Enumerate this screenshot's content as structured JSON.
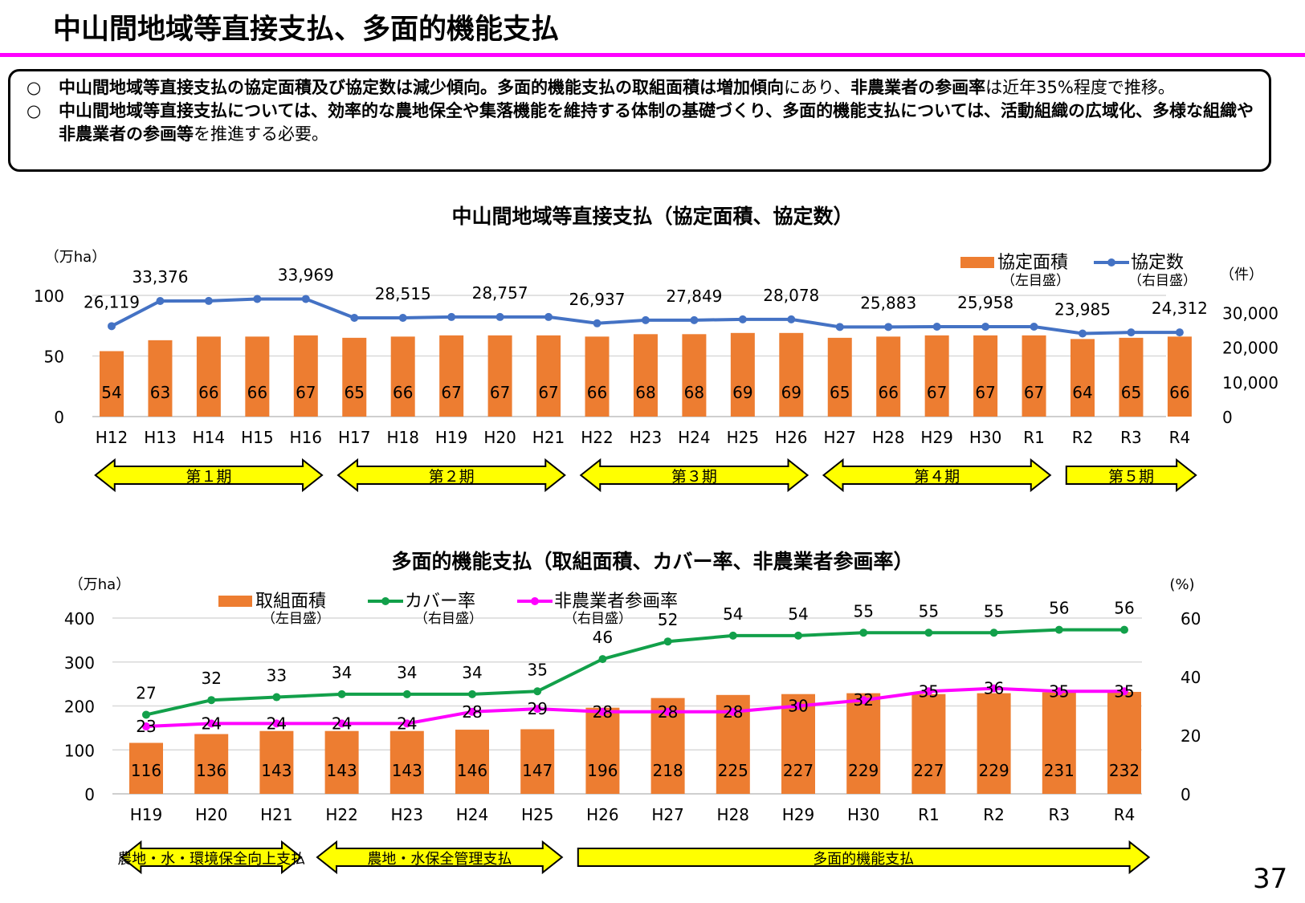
{
  "page": {
    "title": "中山間地域等直接支払、多面的機能支払",
    "page_number": "37"
  },
  "summary": {
    "bullet": "○",
    "line1": {
      "b1": "中山間地域等直接支払の協定面積及び協定数は減少傾向。多面的機能支払の取組面積は増加傾向",
      "n1": "にあり、",
      "b2": "非農業者の参画率",
      "n2": "は近年35%程度で推移。"
    },
    "line2": {
      "b1": "中山間地域等直接支払については、効率的な農地保全や集落機能を維持する体制の基礎づくり、多面的機能支払については、活動組織の広域化、多様な組織や非農業者の参画等",
      "n1": "を推進する必要。"
    }
  },
  "chart_data": [
    {
      "type": "bar",
      "title": "中山間地域等直接支払（協定面積、協定数）",
      "categories": [
        "H12",
        "H13",
        "H14",
        "H15",
        "H16",
        "H17",
        "H18",
        "H19",
        "H20",
        "H21",
        "H22",
        "H23",
        "H24",
        "H25",
        "H26",
        "H27",
        "H28",
        "H29",
        "H30",
        "R1",
        "R2",
        "R3",
        "R4"
      ],
      "series": [
        {
          "name": "協定面積",
          "sub": "（左目盛）",
          "type": "bar",
          "axis": "left",
          "color": "#ed7d31",
          "values": [
            54,
            63,
            66,
            66,
            67,
            65,
            66,
            67,
            67,
            67,
            66,
            68,
            68,
            69,
            69,
            65,
            66,
            67,
            67,
            67,
            64,
            65,
            66
          ]
        },
        {
          "name": "協定数",
          "sub": "（右目盛）",
          "type": "line",
          "axis": "right",
          "color": "#4472c4",
          "values": [
            26119,
            33376,
            33400,
            33969,
            33969,
            28515,
            28515,
            28757,
            28757,
            28757,
            26937,
            27849,
            27849,
            28078,
            28078,
            25883,
            25883,
            25958,
            25958,
            25958,
            23985,
            24312,
            24312
          ],
          "labels": {
            "0": "26,119",
            "1": "33,376",
            "4": "33,969",
            "6": "28,515",
            "8": "28,757",
            "10": "26,937",
            "12": "27,849",
            "14": "28,078",
            "16": "25,883",
            "18": "25,958",
            "20": "23,985",
            "22": "24,312"
          }
        }
      ],
      "y_left": {
        "label": "（万ha）",
        "range": [
          0,
          100
        ],
        "ticks": [
          "0",
          "50",
          "100"
        ]
      },
      "y_right": {
        "label": "（件）",
        "range": [
          0,
          35000
        ],
        "ticks": [
          "0",
          "10,000",
          "20,000",
          "30,000"
        ]
      },
      "periods": [
        {
          "label": "第１期",
          "from": 0,
          "to": 4,
          "style": "double"
        },
        {
          "label": "第２期",
          "from": 5,
          "to": 9,
          "style": "double"
        },
        {
          "label": "第３期",
          "from": 10,
          "to": 14,
          "style": "double"
        },
        {
          "label": "第４期",
          "from": 15,
          "to": 19,
          "style": "double"
        },
        {
          "label": "第５期",
          "from": 20,
          "to": 22,
          "style": "right"
        }
      ],
      "legend": "top-right"
    },
    {
      "type": "bar",
      "title": "多面的機能支払（取組面積、カバー率、非農業者参画率）",
      "categories": [
        "H19",
        "H20",
        "H21",
        "H22",
        "H23",
        "H24",
        "H25",
        "H26",
        "H27",
        "H28",
        "H29",
        "H30",
        "R1",
        "R2",
        "R3",
        "R4"
      ],
      "series": [
        {
          "name": "取組面積",
          "sub": "（左目盛）",
          "type": "bar",
          "axis": "left",
          "color": "#ed7d31",
          "values": [
            116,
            136,
            143,
            143,
            143,
            146,
            147,
            196,
            218,
            225,
            227,
            229,
            227,
            229,
            231,
            232
          ]
        },
        {
          "name": "カバー率",
          "sub": "（右目盛）",
          "type": "line",
          "axis": "right",
          "color": "#12a04a",
          "values": [
            27,
            32,
            33,
            34,
            34,
            34,
            35,
            46,
            52,
            54,
            54,
            55,
            55,
            55,
            56,
            56
          ]
        },
        {
          "name": "非農業者参画率",
          "sub": "（右目盛）",
          "type": "line",
          "axis": "right",
          "color": "#ff00ff",
          "values": [
            23,
            24,
            24,
            24,
            24,
            28,
            29,
            28,
            28,
            28,
            30,
            32,
            35,
            36,
            35,
            35
          ]
        }
      ],
      "y_left": {
        "label": "（万ha）",
        "range": [
          0,
          400
        ],
        "ticks": [
          "0",
          "100",
          "200",
          "300",
          "400"
        ]
      },
      "y_right": {
        "label": "(%)",
        "range": [
          0,
          60
        ],
        "ticks": [
          "0",
          "20",
          "40",
          "60"
        ]
      },
      "periods": [
        {
          "label": "農地・水・環境保全向上支払",
          "from": 0,
          "to": 2,
          "style": "double"
        },
        {
          "label": "農地・水保全管理支払",
          "from": 3,
          "to": 6,
          "style": "double"
        },
        {
          "label": "多面的機能支払",
          "from": 7,
          "to": 15,
          "style": "right"
        }
      ],
      "legend": "top"
    }
  ]
}
